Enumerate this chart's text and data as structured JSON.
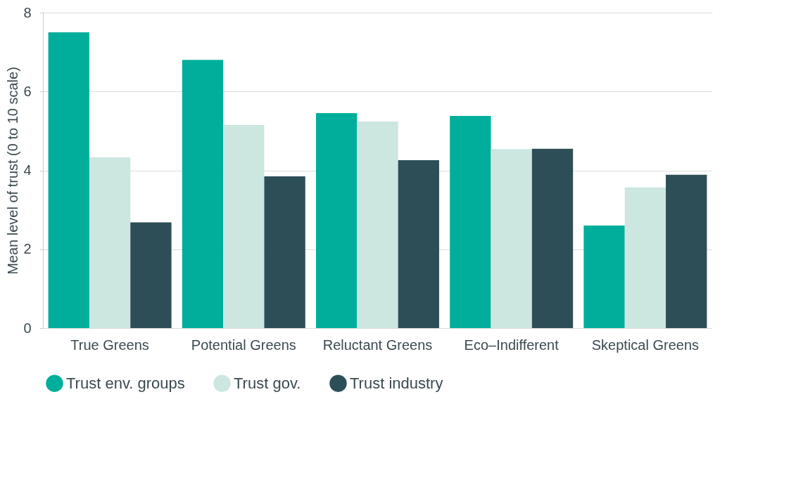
{
  "chart_data": {
    "type": "bar",
    "ylabel": "Mean level of trust (0 to 10 scale)",
    "categories": [
      "True Greens",
      "Potential Greens",
      "Reluctant Greens",
      "Eco–Indifferent",
      "Skeptical Greens"
    ],
    "series": [
      {
        "name": "Trust env. groups",
        "color": "#00ae9b",
        "values": [
          7.5,
          6.8,
          5.45,
          5.38,
          2.6
        ]
      },
      {
        "name": "Trust gov.",
        "color": "#cce6e0",
        "values": [
          4.33,
          5.15,
          5.24,
          4.54,
          3.57
        ]
      },
      {
        "name": "Trust industry",
        "color": "#2d4e57",
        "values": [
          2.68,
          3.85,
          4.26,
          4.55,
          3.89
        ]
      }
    ],
    "ylim": [
      0,
      8
    ],
    "yticks": [
      0,
      2,
      4,
      6,
      8
    ],
    "grid": "y",
    "legend": "bottom"
  }
}
